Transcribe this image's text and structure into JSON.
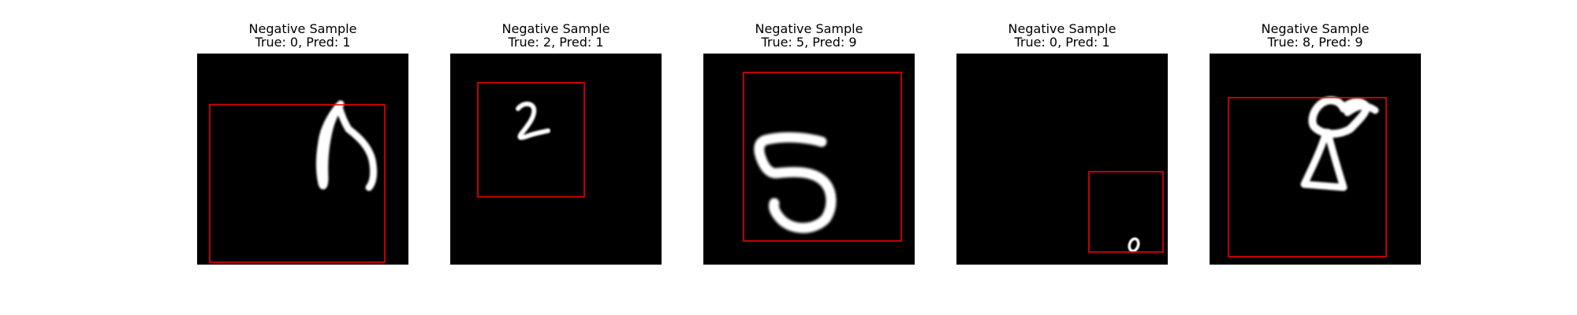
{
  "samples": [
    {
      "title": "Negative Sample",
      "subtitle": "True: 0, Pred: 1",
      "true_label": 0,
      "pred_label": 1
    },
    {
      "title": "Negative Sample",
      "subtitle": "True: 2, Pred: 1",
      "true_label": 2,
      "pred_label": 1
    },
    {
      "title": "Negative Sample",
      "subtitle": "True: 5, Pred: 9",
      "true_label": 5,
      "pred_label": 9
    },
    {
      "title": "Negative Sample",
      "subtitle": "True: 0, Pred: 1",
      "true_label": 0,
      "pred_label": 1
    },
    {
      "title": "Negative Sample",
      "subtitle": "True: 8, Pred: 9",
      "true_label": 8,
      "pred_label": 9
    }
  ],
  "colors": {
    "background": "#000000",
    "digit": "#ffffff",
    "box": "#ff0000"
  }
}
